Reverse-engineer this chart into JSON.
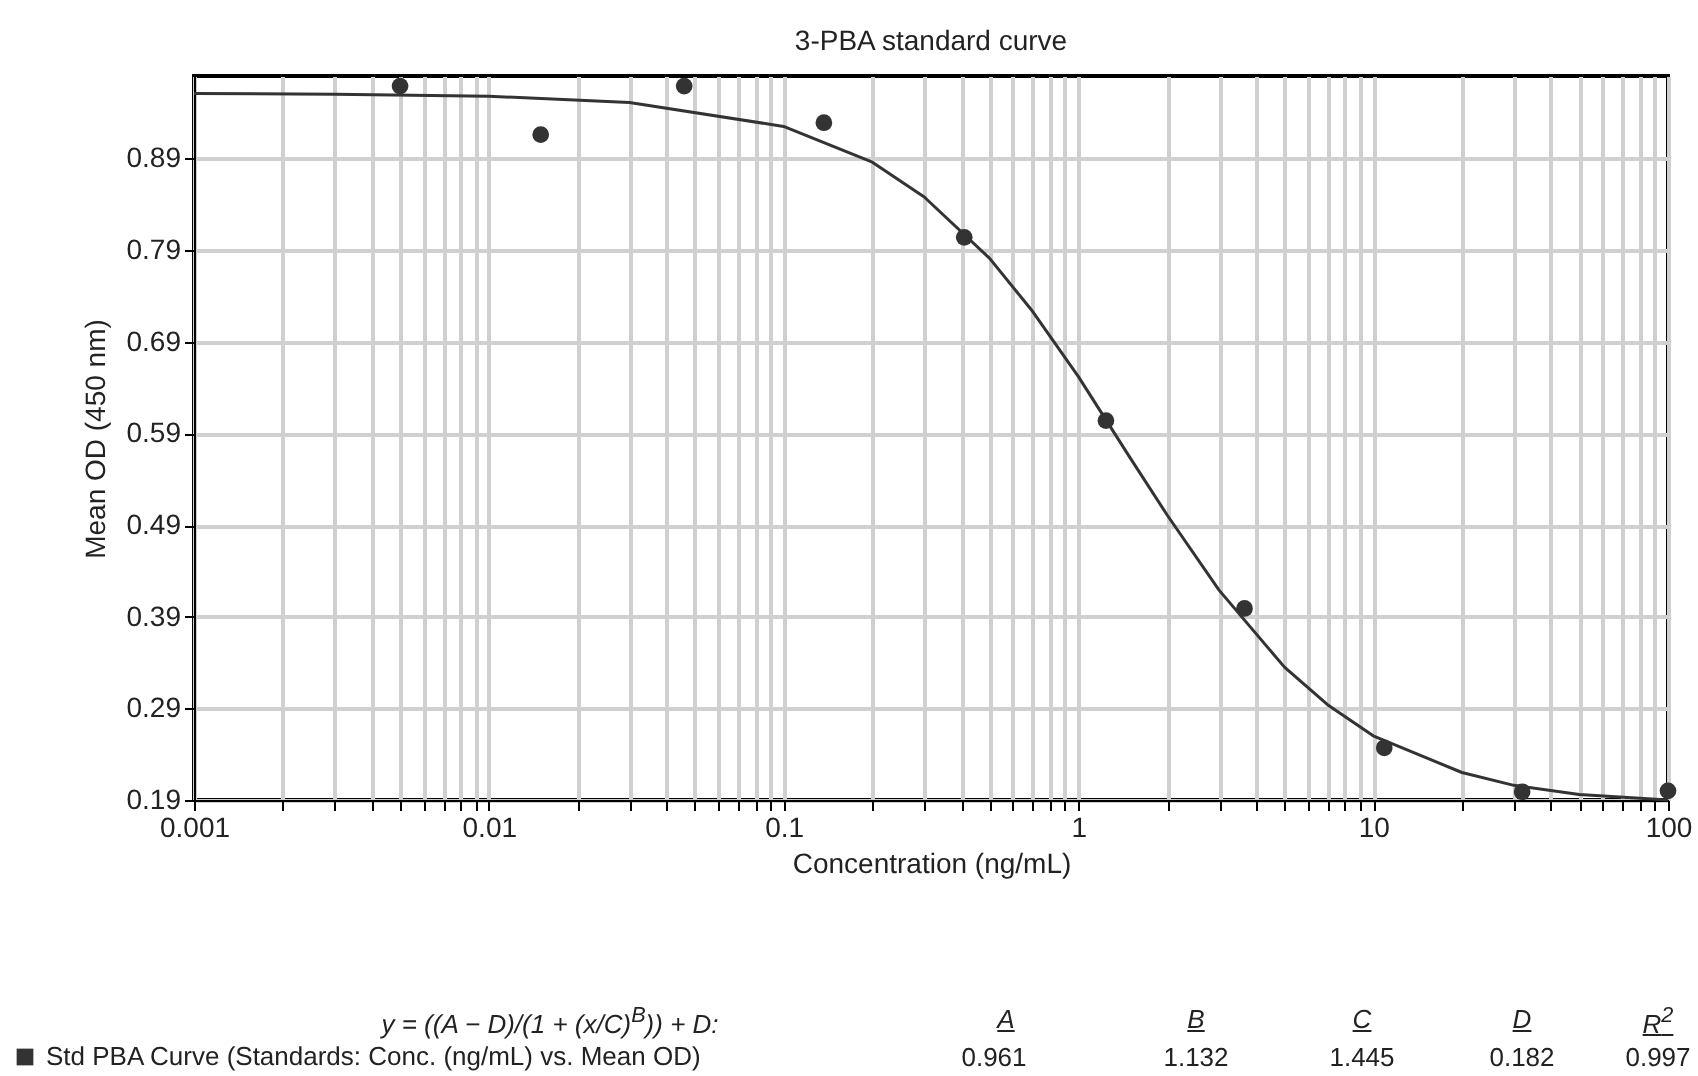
{
  "chart_data": {
    "type": "scatter",
    "title": "3-PBA standard curve",
    "xlabel": "Concentration (ng/mL)",
    "ylabel": "Mean OD (450 nm)",
    "log": "x",
    "grid": true,
    "legend": "bottom left",
    "xlim": [
      0.001,
      100
    ],
    "ylim": [
      0.19,
      0.98
    ],
    "xticks": [
      0.001,
      {
        "value": 0.002,
        "label": null
      },
      {
        "value": 0.003,
        "label": null
      },
      {
        "value": 0.004,
        "label": null
      },
      {
        "value": 0.005,
        "label": null
      },
      {
        "value": 0.006,
        "label": null
      },
      {
        "value": 0.007,
        "label": null
      },
      {
        "value": 0.008,
        "label": null
      },
      {
        "value": 0.009,
        "label": null
      },
      0.01,
      {
        "value": 0.02,
        "label": null
      },
      {
        "value": 0.03,
        "label": null
      },
      {
        "value": 0.04,
        "label": null
      },
      {
        "value": 0.05,
        "label": null
      },
      {
        "value": 0.06,
        "label": null
      },
      {
        "value": 0.07,
        "label": null
      },
      {
        "value": 0.08,
        "label": null
      },
      {
        "value": 0.09,
        "label": null
      },
      0.1,
      {
        "value": 0.2,
        "label": null
      },
      {
        "value": 0.3,
        "label": null
      },
      {
        "value": 0.4,
        "label": null
      },
      {
        "value": 0.5,
        "label": null
      },
      {
        "value": 0.6,
        "label": null
      },
      {
        "value": 0.7,
        "label": null
      },
      {
        "value": 0.8,
        "label": null
      },
      {
        "value": 0.9,
        "label": null
      },
      1,
      {
        "value": 2,
        "label": null
      },
      {
        "value": 3,
        "label": null
      },
      {
        "value": 4,
        "label": null
      },
      {
        "value": 5,
        "label": null
      },
      {
        "value": 6,
        "label": null
      },
      {
        "value": 7,
        "label": null
      },
      {
        "value": 8,
        "label": null
      },
      {
        "value": 9,
        "label": null
      },
      10,
      {
        "value": 20,
        "label": null
      },
      {
        "value": 30,
        "label": null
      },
      {
        "value": 40,
        "label": null
      },
      {
        "value": 50,
        "label": null
      },
      {
        "value": 60,
        "label": null
      },
      {
        "value": 70,
        "label": null
      },
      {
        "value": 80,
        "label": null
      },
      {
        "value": 90,
        "label": null
      },
      100
    ],
    "yticks": [
      0.19,
      0.29,
      0.39,
      0.49,
      0.59,
      0.69,
      0.79,
      0.89
    ],
    "series": [
      {
        "name": "Std PBA Curve (Standards: Conc. (ng/mL) vs. Mean OD)",
        "marker": "circle",
        "color": "#333333",
        "x": [
          0.005,
          0.015,
          0.046,
          0.137,
          0.41,
          1.24,
          3.66,
          10.9,
          32,
          100
        ],
        "values": [
          0.969,
          0.916,
          0.969,
          0.929,
          0.804,
          0.604,
          0.399,
          0.247,
          0.199,
          0.2
        ]
      },
      {
        "type": "line",
        "color": "#333333",
        "x": [
          0.001,
          0.003,
          0.01,
          0.03,
          0.1,
          0.2,
          0.3,
          0.5,
          0.7,
          1,
          1.5,
          2,
          3,
          5,
          7,
          10,
          20,
          30,
          50,
          100
        ],
        "values": [
          0.961,
          0.96,
          0.958,
          0.951,
          0.925,
          0.886,
          0.848,
          0.781,
          0.723,
          0.652,
          0.563,
          0.501,
          0.419,
          0.335,
          0.294,
          0.26,
          0.22,
          0.206,
          0.196,
          0.19
        ]
      }
    ],
    "annotations": [
      "y = ((A − D)/(1 + (x/C)$^{B}$)) + D:",
      "A",
      "B",
      "C",
      "D",
      "R$^{2}$",
      "0.961",
      "1.132",
      "1.445",
      "0.182",
      "0.997"
    ]
  }
}
